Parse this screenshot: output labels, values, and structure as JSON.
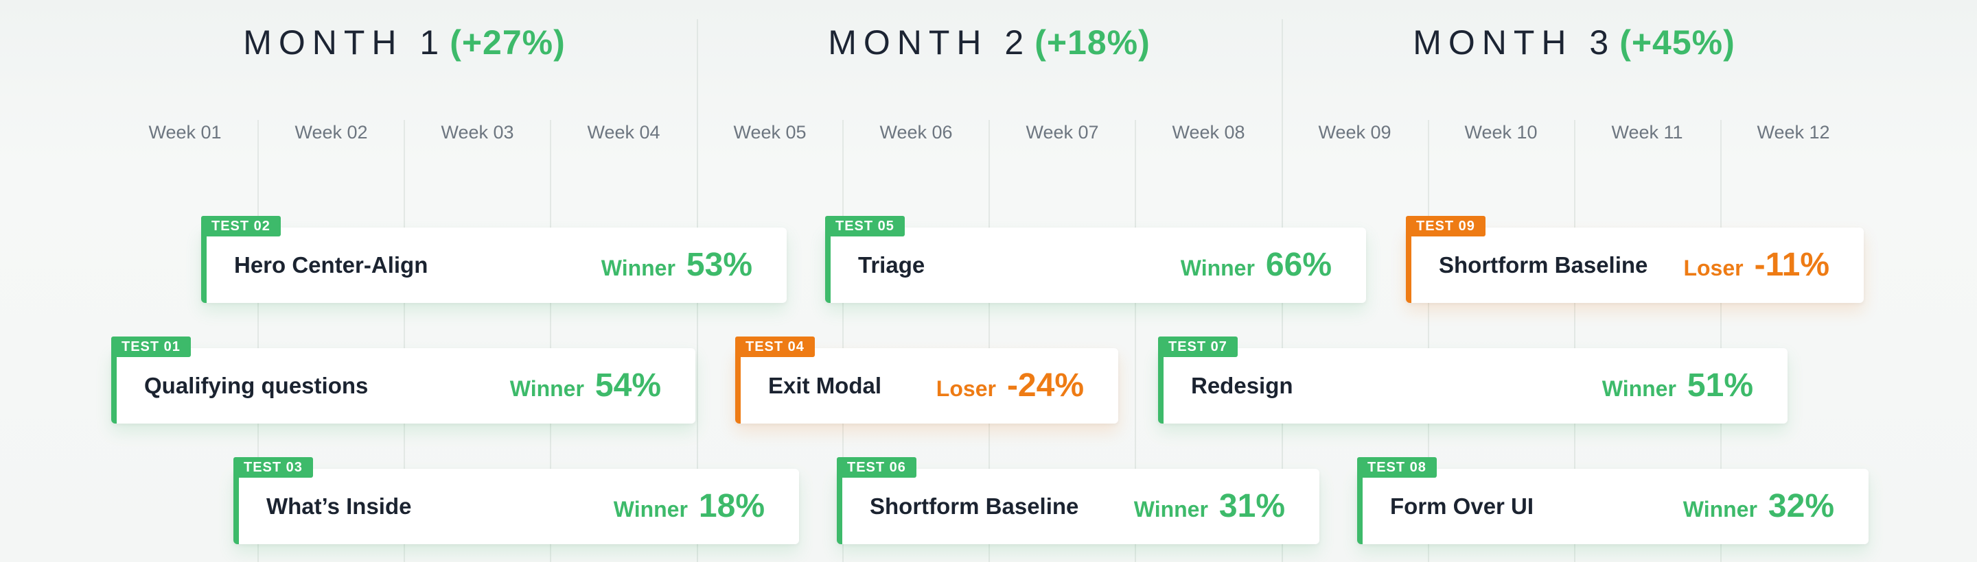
{
  "months": [
    {
      "label": "MONTH 1",
      "growth": "(+27%)"
    },
    {
      "label": "MONTH 2",
      "growth": "(+18%)"
    },
    {
      "label": "MONTH 3",
      "growth": "(+45%)"
    }
  ],
  "weeks": [
    "Week 01",
    "Week 02",
    "Week 03",
    "Week 04",
    "Week 05",
    "Week 06",
    "Week 07",
    "Week 08",
    "Week 09",
    "Week 10",
    "Week 11",
    "Week 12"
  ],
  "tests": [
    {
      "tag": "TEST 02",
      "name": "Hero Center-Align",
      "result": "Winner",
      "value": "53%"
    },
    {
      "tag": "TEST 05",
      "name": "Triage",
      "result": "Winner",
      "value": "66%"
    },
    {
      "tag": "TEST 09",
      "name": "Shortform Baseline",
      "result": "Loser",
      "value": "-11%"
    },
    {
      "tag": "TEST 01",
      "name": "Qualifying questions",
      "result": "Winner",
      "value": "54%"
    },
    {
      "tag": "TEST 04",
      "name": "Exit Modal",
      "result": "Loser",
      "value": "-24%"
    },
    {
      "tag": "TEST 07",
      "name": "Redesign",
      "result": "Winner",
      "value": "51%"
    },
    {
      "tag": "TEST 03",
      "name": "What’s Inside",
      "result": "Winner",
      "value": "18%"
    },
    {
      "tag": "TEST 06",
      "name": "Shortform Baseline",
      "result": "Winner",
      "value": "31%"
    },
    {
      "tag": "TEST 08",
      "name": "Form Over UI",
      "result": "Winner",
      "value": "32%"
    }
  ],
  "colors": {
    "winner": "#3dba6a",
    "loser": "#ee7b14",
    "text": "#1b2330",
    "muted": "#6d7680"
  }
}
